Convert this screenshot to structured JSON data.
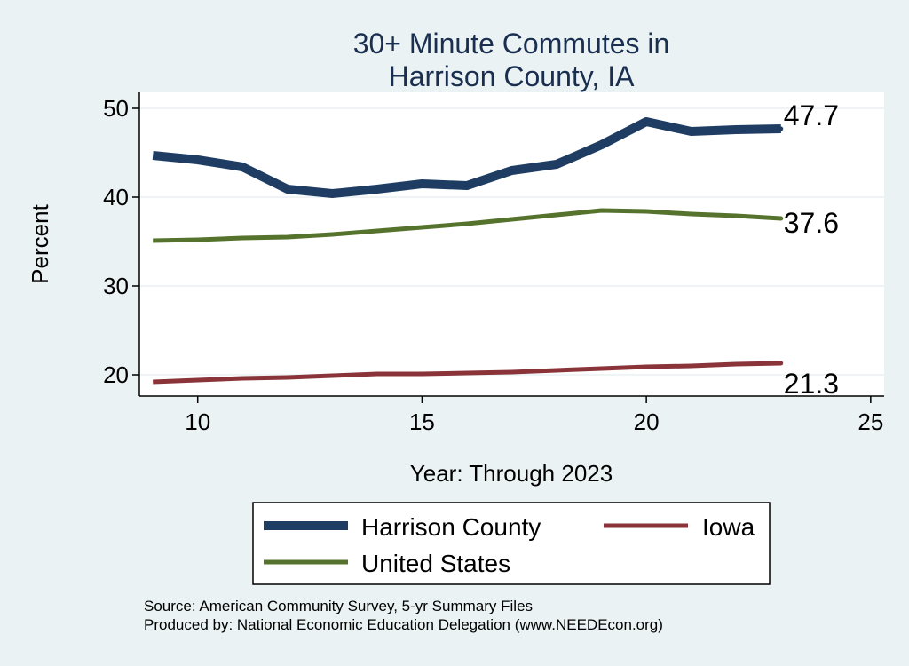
{
  "chart_data": {
    "type": "line",
    "title_lines": [
      "30+ Minute Commutes in",
      "Harrison County, IA"
    ],
    "xlabel": "Year: Through 2023",
    "ylabel": "Percent",
    "xlim": [
      8.7,
      25.3
    ],
    "ylim": [
      17.6,
      51.8
    ],
    "xticks": [
      10,
      15,
      20,
      25
    ],
    "yticks": [
      20,
      30,
      40,
      50
    ],
    "grid": true,
    "x": [
      9,
      10,
      11,
      12,
      13,
      14,
      15,
      16,
      17,
      18,
      19,
      20,
      21,
      22,
      23
    ],
    "series": [
      {
        "name": "Harrison County",
        "color": "#1f3d63",
        "values": [
          44.7,
          44.2,
          43.4,
          40.9,
          40.4,
          40.9,
          41.5,
          41.3,
          43.0,
          43.7,
          45.9,
          48.5,
          47.4,
          47.6,
          47.7
        ],
        "end_label": "47.7"
      },
      {
        "name": "United States",
        "color": "#56732e",
        "values": [
          35.1,
          35.2,
          35.4,
          35.5,
          35.8,
          36.2,
          36.6,
          37.0,
          37.5,
          38.0,
          38.5,
          38.4,
          38.1,
          37.9,
          37.6
        ],
        "end_label": "37.6"
      },
      {
        "name": "Iowa",
        "color": "#8a3339",
        "values": [
          19.2,
          19.4,
          19.6,
          19.7,
          19.9,
          20.1,
          20.1,
          20.2,
          20.3,
          20.5,
          20.7,
          20.9,
          21.0,
          21.2,
          21.3
        ],
        "end_label": "21.3"
      }
    ],
    "legend": [
      "Harrison County",
      "Iowa",
      "United States"
    ],
    "legend_position": "bottom"
  },
  "source_lines": [
    "Source: American Community Survey, 5-yr Summary Files",
    "Produced by: National Economic Education Delegation (www.NEEDEcon.org)"
  ]
}
